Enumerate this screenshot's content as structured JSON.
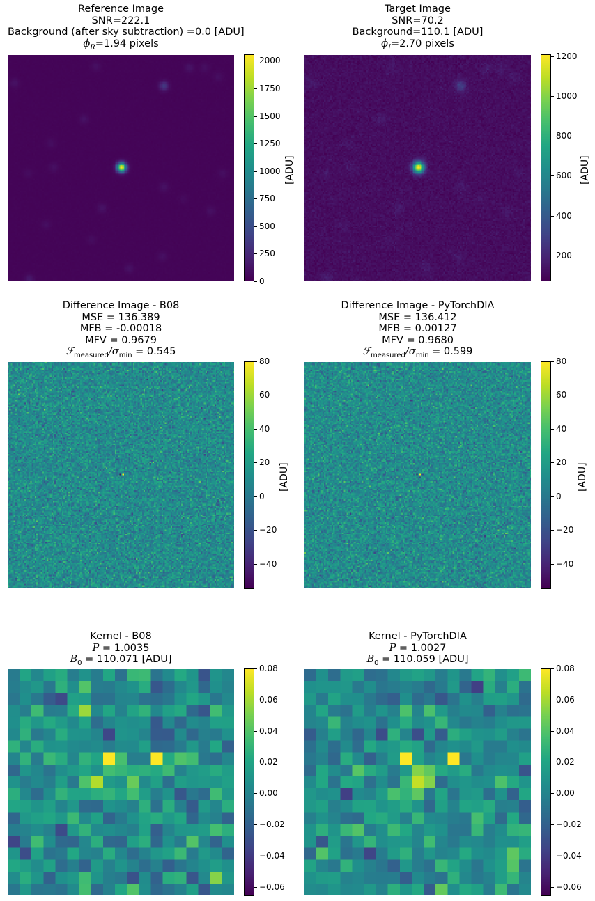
{
  "colormap": "viridis",
  "panels": [
    {
      "id": "reference-image",
      "title_lines": [
        "Reference Image",
        "SNR=222.1",
        "Background (after sky subtraction) =0.0 [ADU]"
      ],
      "psf_symbol": "ϕ",
      "psf_subscript": "R",
      "psf_value": "=1.94 pixels",
      "colorbar": {
        "label": "[ADU]",
        "vmin": 0,
        "vmax": 2060,
        "ticks": [
          "0",
          "250",
          "500",
          "750",
          "1000",
          "1250",
          "1500",
          "1750",
          "2000"
        ],
        "tick_values": [
          0,
          250,
          500,
          750,
          1000,
          1250,
          1500,
          1750,
          2000
        ]
      }
    },
    {
      "id": "target-image",
      "title_lines": [
        "Target Image",
        "SNR=70.2",
        "Background=110.1 [ADU]"
      ],
      "psf_symbol": "ϕ",
      "psf_subscript": "I",
      "psf_value": "=2.70 pixels",
      "colorbar": {
        "label": "[ADU]",
        "vmin": 70,
        "vmax": 1210,
        "ticks": [
          "200",
          "400",
          "600",
          "800",
          "1000",
          "1200"
        ],
        "tick_values": [
          200,
          400,
          600,
          800,
          1000,
          1200
        ]
      }
    },
    {
      "id": "difference-b08",
      "title_lines": [
        "Difference Image - B08",
        "MSE = 136.389",
        "MFB = -0.00018",
        "MFV = 0.9679"
      ],
      "metric_prefix": "ℱ",
      "metric_sub1": "measured",
      "metric_mid": "/σ",
      "metric_sub2": "min",
      "metric_value": " = 0.545",
      "colorbar": {
        "label": "[ADU]",
        "vmin": -55,
        "vmax": 80,
        "ticks": [
          "−40",
          "−20",
          "0",
          "20",
          "40",
          "60",
          "80"
        ],
        "tick_values": [
          -40,
          -20,
          0,
          20,
          40,
          60,
          80
        ]
      }
    },
    {
      "id": "difference-pytorchdia",
      "title_lines": [
        "Difference Image - PyTorchDIA",
        "MSE = 136.412",
        "MFB = 0.00127",
        "MFV = 0.9680"
      ],
      "metric_prefix": "ℱ",
      "metric_sub1": "measured",
      "metric_mid": "/σ",
      "metric_sub2": "min",
      "metric_value": " = 0.599",
      "colorbar": {
        "label": "[ADU]",
        "vmin": -55,
        "vmax": 80,
        "ticks": [
          "−40",
          "−20",
          "0",
          "20",
          "40",
          "60",
          "80"
        ],
        "tick_values": [
          -40,
          -20,
          0,
          20,
          40,
          60,
          80
        ]
      }
    },
    {
      "id": "kernel-b08",
      "title_lines": [
        "Kernel - B08"
      ],
      "p_symbol": "P",
      "p_value": " = 1.0035",
      "b_symbol": "B",
      "b_subscript": "0",
      "b_value": " = 110.071 [ADU]",
      "colorbar": {
        "label": "",
        "vmin": -0.066,
        "vmax": 0.08,
        "ticks": [
          "−0.06",
          "−0.04",
          "−0.02",
          "0.00",
          "0.02",
          "0.04",
          "0.06",
          "0.08"
        ],
        "tick_values": [
          -0.06,
          -0.04,
          -0.02,
          0.0,
          0.02,
          0.04,
          0.06,
          0.08
        ]
      }
    },
    {
      "id": "kernel-pytorchdia",
      "title_lines": [
        "Kernel - PyTorchDIA"
      ],
      "p_symbol": "P",
      "p_value": " = 1.0027",
      "b_symbol": "B",
      "b_subscript": "0",
      "b_value": " = 110.059 [ADU]",
      "colorbar": {
        "label": "",
        "vmin": -0.066,
        "vmax": 0.08,
        "ticks": [
          "−0.06",
          "−0.04",
          "−0.02",
          "0.00",
          "0.02",
          "0.04",
          "0.06",
          "0.08"
        ],
        "tick_values": [
          -0.06,
          -0.04,
          -0.02,
          0.0,
          0.02,
          0.04,
          0.06,
          0.08
        ]
      }
    }
  ]
}
